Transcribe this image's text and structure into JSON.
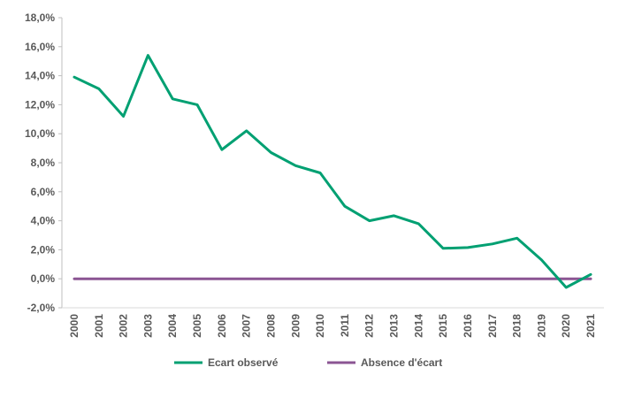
{
  "chart_data": {
    "type": "line",
    "categories": [
      "2000",
      "2001",
      "2002",
      "2003",
      "2004",
      "2005",
      "2006",
      "2007",
      "2008",
      "2009",
      "2010",
      "2011",
      "2012",
      "2013",
      "2014",
      "2015",
      "2016",
      "2017",
      "2018",
      "2019",
      "2020",
      "2021"
    ],
    "ylim": [
      -2.0,
      18.0
    ],
    "y_ticks": [
      -2.0,
      0.0,
      2.0,
      4.0,
      6.0,
      8.0,
      10.0,
      12.0,
      14.0,
      16.0,
      18.0
    ],
    "y_tick_labels": [
      "-2,0%",
      "0,0%",
      "2,0%",
      "4,0%",
      "6,0%",
      "8,0%",
      "10,0%",
      "12,0%",
      "14,0%",
      "16,0%",
      "18,0%"
    ],
    "grid": false,
    "legend_position": "bottom",
    "series": [
      {
        "name": "Ecart observé",
        "color": "#00A072",
        "values": [
          13.9,
          13.1,
          11.2,
          15.4,
          12.4,
          12.0,
          8.9,
          10.2,
          8.7,
          7.8,
          7.3,
          5.0,
          4.0,
          4.35,
          3.8,
          2.1,
          2.15,
          2.4,
          2.8,
          1.3,
          -0.6,
          0.3
        ]
      },
      {
        "name": "Absence d'écart",
        "color": "#8B5593",
        "values": [
          0,
          0,
          0,
          0,
          0,
          0,
          0,
          0,
          0,
          0,
          0,
          0,
          0,
          0,
          0,
          0,
          0,
          0,
          0,
          0,
          0,
          0
        ]
      }
    ]
  }
}
